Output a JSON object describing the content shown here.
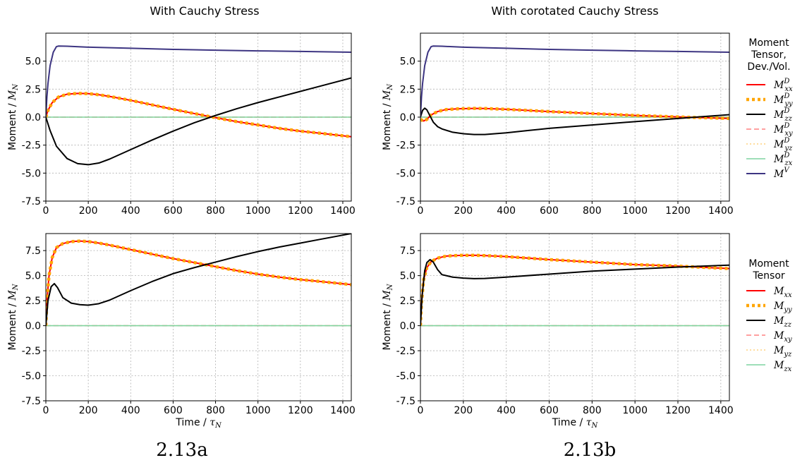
{
  "figure": {
    "column_titles": [
      "With Cauchy Stress",
      "With corotated Cauchy Stress"
    ],
    "captions": [
      "2.13a",
      "2.13b"
    ]
  },
  "legends": [
    {
      "title_lines": [
        "Moment",
        "Tensor,",
        "Dev./Vol."
      ],
      "entries": [
        {
          "base": "M",
          "sub": "xx",
          "sup": "D",
          "color": "#ff0000",
          "style": "solid"
        },
        {
          "base": "M",
          "sub": "yy",
          "sup": "D",
          "color": "#ffa500",
          "style": "dotted-thick"
        },
        {
          "base": "M",
          "sub": "zz",
          "sup": "D",
          "color": "#000000",
          "style": "solid"
        },
        {
          "base": "M",
          "sub": "xy",
          "sup": "D",
          "color": "#ff8080",
          "style": "dashed"
        },
        {
          "base": "M",
          "sub": "yz",
          "sup": "D",
          "color": "#ffd27f",
          "style": "dotted"
        },
        {
          "base": "M",
          "sub": "zx",
          "sup": "D",
          "color": "#7fd4a0",
          "style": "solid"
        },
        {
          "base": "M",
          "sub": "",
          "sup": "V",
          "color": "#3d3582",
          "style": "solid"
        }
      ]
    },
    {
      "title_lines": [
        "Moment",
        "Tensor"
      ],
      "entries": [
        {
          "base": "M",
          "sub": "xx",
          "sup": "",
          "color": "#ff0000",
          "style": "solid"
        },
        {
          "base": "M",
          "sub": "yy",
          "sup": "",
          "color": "#ffa500",
          "style": "dotted-thick"
        },
        {
          "base": "M",
          "sub": "zz",
          "sup": "",
          "color": "#000000",
          "style": "solid"
        },
        {
          "base": "M",
          "sub": "xy",
          "sup": "",
          "color": "#ff8080",
          "style": "dashed"
        },
        {
          "base": "M",
          "sub": "yz",
          "sup": "",
          "color": "#ffd27f",
          "style": "dotted"
        },
        {
          "base": "M",
          "sub": "zx",
          "sup": "",
          "color": "#7fd4a0",
          "style": "solid"
        }
      ]
    }
  ],
  "chart_data": [
    {
      "type": "line",
      "panel": "top-left",
      "ylabel": "Moment / M_N",
      "xlabel": "",
      "xlim": [
        0,
        1440
      ],
      "ylim": [
        -7.5,
        7.5
      ],
      "xticks": [
        0,
        200,
        400,
        600,
        800,
        1000,
        1200,
        1400
      ],
      "xtick_labels": [
        "0",
        "200",
        "400",
        "600",
        "800",
        "1000",
        "1200",
        "1400"
      ],
      "yticks": [
        -7.5,
        -5.0,
        -2.5,
        0.0,
        2.5,
        5.0
      ],
      "ytick_labels": [
        "-7.5",
        "-5.0",
        "-2.5",
        "0.0",
        "2.5",
        "5.0"
      ],
      "grid": true,
      "series": [
        {
          "legend": 1,
          "x": [
            0,
            10,
            30,
            60,
            100,
            150,
            200,
            250,
            300,
            400,
            500,
            600,
            700,
            800,
            900,
            1000,
            1100,
            1200,
            1300,
            1440
          ],
          "y": [
            0,
            0.6,
            1.3,
            1.8,
            2.05,
            2.12,
            2.1,
            2.0,
            1.85,
            1.5,
            1.1,
            0.7,
            0.32,
            -0.05,
            -0.4,
            -0.7,
            -1.0,
            -1.25,
            -1.45,
            -1.75
          ]
        },
        {
          "legend": 2,
          "x": [
            0,
            10,
            30,
            60,
            100,
            150,
            200,
            250,
            300,
            400,
            500,
            600,
            700,
            800,
            900,
            1000,
            1100,
            1200,
            1300,
            1440
          ],
          "y": [
            0,
            0.6,
            1.3,
            1.8,
            2.05,
            2.12,
            2.1,
            2.0,
            1.85,
            1.5,
            1.1,
            0.7,
            0.32,
            -0.05,
            -0.4,
            -0.7,
            -1.0,
            -1.25,
            -1.45,
            -1.75
          ]
        },
        {
          "legend": 3,
          "x": [
            0,
            20,
            50,
            100,
            150,
            200,
            250,
            300,
            400,
            500,
            600,
            700,
            800,
            900,
            1000,
            1100,
            1200,
            1300,
            1440
          ],
          "y": [
            0,
            -1.2,
            -2.6,
            -3.7,
            -4.15,
            -4.25,
            -4.1,
            -3.75,
            -2.9,
            -2.05,
            -1.25,
            -0.5,
            0.15,
            0.75,
            1.3,
            1.8,
            2.3,
            2.8,
            3.5
          ]
        },
        {
          "legend": 4,
          "x": [
            0,
            1440
          ],
          "y": [
            0,
            0
          ]
        },
        {
          "legend": 5,
          "x": [
            0,
            1440
          ],
          "y": [
            0,
            0
          ]
        },
        {
          "legend": 6,
          "x": [
            0,
            1440
          ],
          "y": [
            0,
            0
          ]
        },
        {
          "legend": 7,
          "x": [
            0,
            5,
            10,
            20,
            35,
            50,
            60,
            100,
            200,
            400,
            600,
            800,
            1000,
            1200,
            1440
          ],
          "y": [
            0,
            1.8,
            3.0,
            4.6,
            5.8,
            6.3,
            6.35,
            6.33,
            6.25,
            6.15,
            6.05,
            5.98,
            5.92,
            5.87,
            5.8
          ]
        }
      ]
    },
    {
      "type": "line",
      "panel": "top-right",
      "ylabel": "Moment / M_N",
      "xlabel": "",
      "xlim": [
        0,
        1440
      ],
      "ylim": [
        -7.5,
        7.5
      ],
      "xticks": [
        0,
        200,
        400,
        600,
        800,
        1000,
        1200,
        1400
      ],
      "xtick_labels": [
        "0",
        "200",
        "400",
        "600",
        "800",
        "1000",
        "1200",
        "1400"
      ],
      "yticks": [
        -7.5,
        -5.0,
        -2.5,
        0.0,
        2.5,
        5.0
      ],
      "ytick_labels": [
        "-7.5",
        "-5.0",
        "-2.5",
        "0.0",
        "2.5",
        "5.0"
      ],
      "grid": true,
      "series": [
        {
          "legend": 1,
          "x": [
            0,
            15,
            30,
            50,
            80,
            120,
            180,
            250,
            300,
            400,
            600,
            800,
            1000,
            1200,
            1440
          ],
          "y": [
            -0.2,
            -0.35,
            -0.2,
            0.2,
            0.5,
            0.68,
            0.75,
            0.78,
            0.77,
            0.7,
            0.5,
            0.32,
            0.15,
            0.02,
            -0.12
          ]
        },
        {
          "legend": 2,
          "x": [
            0,
            15,
            30,
            50,
            80,
            120,
            180,
            250,
            300,
            400,
            600,
            800,
            1000,
            1200,
            1440
          ],
          "y": [
            -0.2,
            -0.35,
            -0.2,
            0.2,
            0.5,
            0.68,
            0.75,
            0.78,
            0.77,
            0.7,
            0.5,
            0.32,
            0.15,
            0.02,
            -0.12
          ]
        },
        {
          "legend": 3,
          "x": [
            0,
            10,
            20,
            30,
            45,
            60,
            80,
            100,
            150,
            200,
            250,
            300,
            400,
            500,
            600,
            800,
            1000,
            1200,
            1440
          ],
          "y": [
            0,
            0.6,
            0.8,
            0.65,
            0.1,
            -0.45,
            -0.85,
            -1.05,
            -1.35,
            -1.48,
            -1.55,
            -1.55,
            -1.4,
            -1.2,
            -1.0,
            -0.7,
            -0.4,
            -0.12,
            0.22
          ]
        },
        {
          "legend": 4,
          "x": [
            0,
            1440
          ],
          "y": [
            0,
            0
          ]
        },
        {
          "legend": 5,
          "x": [
            0,
            1440
          ],
          "y": [
            0,
            0
          ]
        },
        {
          "legend": 6,
          "x": [
            0,
            1440
          ],
          "y": [
            0,
            0
          ]
        },
        {
          "legend": 7,
          "x": [
            0,
            5,
            10,
            20,
            35,
            50,
            60,
            100,
            200,
            400,
            600,
            800,
            1000,
            1200,
            1440
          ],
          "y": [
            0,
            1.8,
            3.0,
            4.6,
            5.8,
            6.3,
            6.35,
            6.33,
            6.25,
            6.15,
            6.05,
            5.98,
            5.92,
            5.87,
            5.8
          ]
        }
      ]
    },
    {
      "type": "line",
      "panel": "bottom-left",
      "ylabel": "Moment / M_N",
      "xlabel": "Time / τ_N",
      "xlim": [
        0,
        1440
      ],
      "ylim": [
        -7.5,
        9.2
      ],
      "xticks": [
        0,
        200,
        400,
        600,
        800,
        1000,
        1200,
        1400
      ],
      "xtick_labels": [
        "0",
        "200",
        "400",
        "600",
        "800",
        "1000",
        "1200",
        "1400"
      ],
      "yticks": [
        -7.5,
        -5.0,
        -2.5,
        0.0,
        2.5,
        5.0,
        7.5
      ],
      "ytick_labels": [
        "-7.5",
        "-5.0",
        "-2.5",
        "0.0",
        "2.5",
        "5.0",
        "7.5"
      ],
      "grid": true,
      "series": [
        {
          "legend": 1,
          "x": [
            0,
            5,
            15,
            30,
            50,
            80,
            120,
            160,
            200,
            250,
            300,
            400,
            500,
            600,
            700,
            800,
            900,
            1000,
            1100,
            1200,
            1300,
            1440
          ],
          "y": [
            0,
            2.5,
            5.0,
            6.8,
            7.8,
            8.2,
            8.4,
            8.45,
            8.4,
            8.25,
            8.05,
            7.6,
            7.15,
            6.7,
            6.3,
            5.9,
            5.5,
            5.15,
            4.85,
            4.6,
            4.4,
            4.1
          ]
        },
        {
          "legend": 2,
          "x": [
            0,
            5,
            15,
            30,
            50,
            80,
            120,
            160,
            200,
            250,
            300,
            400,
            500,
            600,
            700,
            800,
            900,
            1000,
            1100,
            1200,
            1300,
            1440
          ],
          "y": [
            0,
            2.5,
            5.0,
            6.8,
            7.8,
            8.2,
            8.4,
            8.45,
            8.4,
            8.25,
            8.05,
            7.6,
            7.15,
            6.7,
            6.3,
            5.9,
            5.5,
            5.15,
            4.85,
            4.6,
            4.4,
            4.1
          ]
        },
        {
          "legend": 3,
          "x": [
            0,
            10,
            25,
            40,
            55,
            80,
            120,
            160,
            200,
            250,
            300,
            400,
            500,
            600,
            700,
            800,
            900,
            1000,
            1100,
            1200,
            1300,
            1440
          ],
          "y": [
            0,
            2.5,
            3.9,
            4.2,
            3.8,
            2.8,
            2.25,
            2.1,
            2.05,
            2.2,
            2.55,
            3.5,
            4.4,
            5.2,
            5.8,
            6.35,
            6.9,
            7.4,
            7.85,
            8.25,
            8.65,
            9.2
          ]
        },
        {
          "legend": 4,
          "x": [
            0,
            1440
          ],
          "y": [
            0,
            0
          ]
        },
        {
          "legend": 5,
          "x": [
            0,
            1440
          ],
          "y": [
            0,
            0
          ]
        },
        {
          "legend": 6,
          "x": [
            0,
            1440
          ],
          "y": [
            0,
            0
          ]
        }
      ]
    },
    {
      "type": "line",
      "panel": "bottom-right",
      "ylabel": "Moment / M_N",
      "xlabel": "Time / τ_N",
      "xlim": [
        0,
        1440
      ],
      "ylim": [
        -7.5,
        9.2
      ],
      "xticks": [
        0,
        200,
        400,
        600,
        800,
        1000,
        1200,
        1400
      ],
      "xtick_labels": [
        "0",
        "200",
        "400",
        "600",
        "800",
        "1000",
        "1200",
        "1400"
      ],
      "yticks": [
        -7.5,
        -5.0,
        -2.5,
        0.0,
        2.5,
        5.0,
        7.5
      ],
      "ytick_labels": [
        "-7.5",
        "-5.0",
        "-2.5",
        "0.0",
        "2.5",
        "5.0",
        "7.5"
      ],
      "grid": true,
      "series": [
        {
          "legend": 1,
          "x": [
            0,
            5,
            15,
            30,
            50,
            80,
            120,
            180,
            250,
            300,
            400,
            600,
            800,
            1000,
            1200,
            1440
          ],
          "y": [
            0,
            2.3,
            4.6,
            5.8,
            6.4,
            6.75,
            6.95,
            7.02,
            7.03,
            7.0,
            6.9,
            6.6,
            6.35,
            6.1,
            5.95,
            5.7
          ]
        },
        {
          "legend": 2,
          "x": [
            0,
            5,
            15,
            30,
            50,
            80,
            120,
            180,
            250,
            300,
            400,
            600,
            800,
            1000,
            1200,
            1440
          ],
          "y": [
            0,
            2.3,
            4.6,
            5.8,
            6.4,
            6.75,
            6.95,
            7.02,
            7.03,
            7.0,
            6.9,
            6.6,
            6.35,
            6.1,
            5.95,
            5.7
          ]
        },
        {
          "legend": 3,
          "x": [
            0,
            8,
            20,
            30,
            45,
            60,
            80,
            100,
            150,
            200,
            250,
            300,
            400,
            600,
            800,
            1000,
            1200,
            1440
          ],
          "y": [
            0,
            3.0,
            5.5,
            6.3,
            6.6,
            6.35,
            5.6,
            5.1,
            4.85,
            4.75,
            4.7,
            4.72,
            4.85,
            5.15,
            5.45,
            5.65,
            5.85,
            6.05
          ]
        },
        {
          "legend": 4,
          "x": [
            0,
            1440
          ],
          "y": [
            0,
            0
          ]
        },
        {
          "legend": 5,
          "x": [
            0,
            1440
          ],
          "y": [
            0,
            0
          ]
        },
        {
          "legend": 6,
          "x": [
            0,
            1440
          ],
          "y": [
            0,
            0
          ]
        }
      ]
    }
  ]
}
